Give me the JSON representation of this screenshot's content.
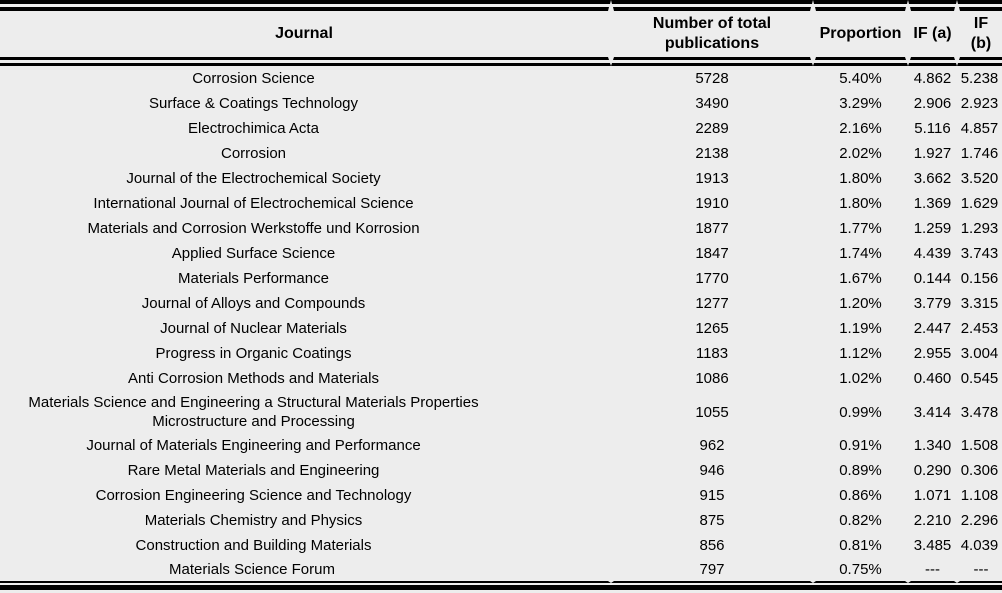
{
  "colors": {
    "background": "#ededed",
    "rule": "#000000",
    "text": "#000000"
  },
  "table": {
    "columns": [
      {
        "label": "Journal"
      },
      {
        "label": "Number of total publications"
      },
      {
        "label": "Proportion"
      },
      {
        "label": "IF (a)"
      },
      {
        "label": "IF (b)"
      }
    ],
    "no_value_placeholder": "---",
    "rows": [
      {
        "journal": "Corrosion Science",
        "publications": "5728",
        "proportion": "5.40%",
        "if_a": "4.862",
        "if_b": "5.238"
      },
      {
        "journal": "Surface & Coatings Technology",
        "publications": "3490",
        "proportion": "3.29%",
        "if_a": "2.906",
        "if_b": "2.923"
      },
      {
        "journal": "Electrochimica Acta",
        "publications": "2289",
        "proportion": "2.16%",
        "if_a": "5.116",
        "if_b": "4.857"
      },
      {
        "journal": "Corrosion",
        "publications": "2138",
        "proportion": "2.02%",
        "if_a": "1.927",
        "if_b": "1.746"
      },
      {
        "journal": "Journal of the Electrochemical Society",
        "publications": "1913",
        "proportion": "1.80%",
        "if_a": "3.662",
        "if_b": "3.520"
      },
      {
        "journal": "International Journal of Electrochemical Science",
        "publications": "1910",
        "proportion": "1.80%",
        "if_a": "1.369",
        "if_b": "1.629"
      },
      {
        "journal": "Materials and Corrosion Werkstoffe und Korrosion",
        "publications": "1877",
        "proportion": "1.77%",
        "if_a": "1.259",
        "if_b": "1.293"
      },
      {
        "journal": "Applied Surface Science",
        "publications": "1847",
        "proportion": "1.74%",
        "if_a": "4.439",
        "if_b": "3.743"
      },
      {
        "journal": "Materials Performance",
        "publications": "1770",
        "proportion": "1.67%",
        "if_a": "0.144",
        "if_b": "0.156"
      },
      {
        "journal": "Journal of Alloys and Compounds",
        "publications": "1277",
        "proportion": "1.20%",
        "if_a": "3.779",
        "if_b": "3.315"
      },
      {
        "journal": "Journal of Nuclear Materials",
        "publications": "1265",
        "proportion": "1.19%",
        "if_a": "2.447",
        "if_b": "2.453"
      },
      {
        "journal": "Progress in Organic Coatings",
        "publications": "1183",
        "proportion": "1.12%",
        "if_a": "2.955",
        "if_b": "3.004"
      },
      {
        "journal": "Anti Corrosion Methods and Materials",
        "publications": "1086",
        "proportion": "1.02%",
        "if_a": "0.460",
        "if_b": "0.545"
      },
      {
        "journal": "Materials Science and Engineering a Structural Materials Properties Microstructure and Processing",
        "publications": "1055",
        "proportion": "0.99%",
        "if_a": "3.414",
        "if_b": "3.478"
      },
      {
        "journal": "Journal of Materials Engineering and Performance",
        "publications": "962",
        "proportion": "0.91%",
        "if_a": "1.340",
        "if_b": "1.508"
      },
      {
        "journal": "Rare Metal Materials and Engineering",
        "publications": "946",
        "proportion": "0.89%",
        "if_a": "0.290",
        "if_b": "0.306"
      },
      {
        "journal": "Corrosion Engineering Science and Technology",
        "publications": "915",
        "proportion": "0.86%",
        "if_a": "1.071",
        "if_b": "1.108"
      },
      {
        "journal": "Materials Chemistry and Physics",
        "publications": "875",
        "proportion": "0.82%",
        "if_a": "2.210",
        "if_b": "2.296"
      },
      {
        "journal": "Construction and Building Materials",
        "publications": "856",
        "proportion": "0.81%",
        "if_a": "3.485",
        "if_b": "4.039"
      },
      {
        "journal": "Materials Science Forum",
        "publications": "797",
        "proportion": "0.75%",
        "if_a": "---",
        "if_b": "---"
      }
    ]
  }
}
